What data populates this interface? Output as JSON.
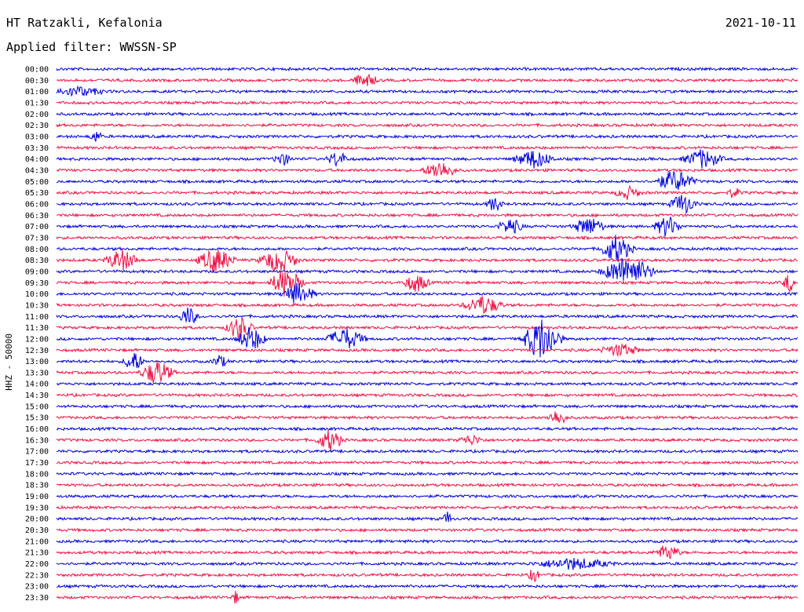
{
  "header": {
    "station": "HT Ratzakli, Kefalonia",
    "filter": "Applied filter: WWSSN-SP",
    "date": "2021-10-11"
  },
  "channel_label": "HHZ - 50000",
  "colors": {
    "trace_even": "#0000dd",
    "trace_odd": "#ee1144"
  },
  "time_labels": [
    "00:00",
    "00:30",
    "01:00",
    "01:30",
    "02:00",
    "02:30",
    "03:00",
    "03:30",
    "04:00",
    "04:30",
    "05:00",
    "05:30",
    "06:00",
    "06:30",
    "07:00",
    "07:30",
    "08:00",
    "08:30",
    "09:00",
    "09:30",
    "10:00",
    "10:30",
    "11:00",
    "11:30",
    "12:00",
    "12:30",
    "13:00",
    "13:30",
    "14:00",
    "14:30",
    "15:00",
    "15:30",
    "16:00",
    "16:30",
    "17:00",
    "17:30",
    "18:00",
    "18:30",
    "19:00",
    "19:30",
    "20:00",
    "20:30",
    "21:00",
    "21:30",
    "22:00",
    "22:30",
    "23:00",
    "23:30"
  ]
}
